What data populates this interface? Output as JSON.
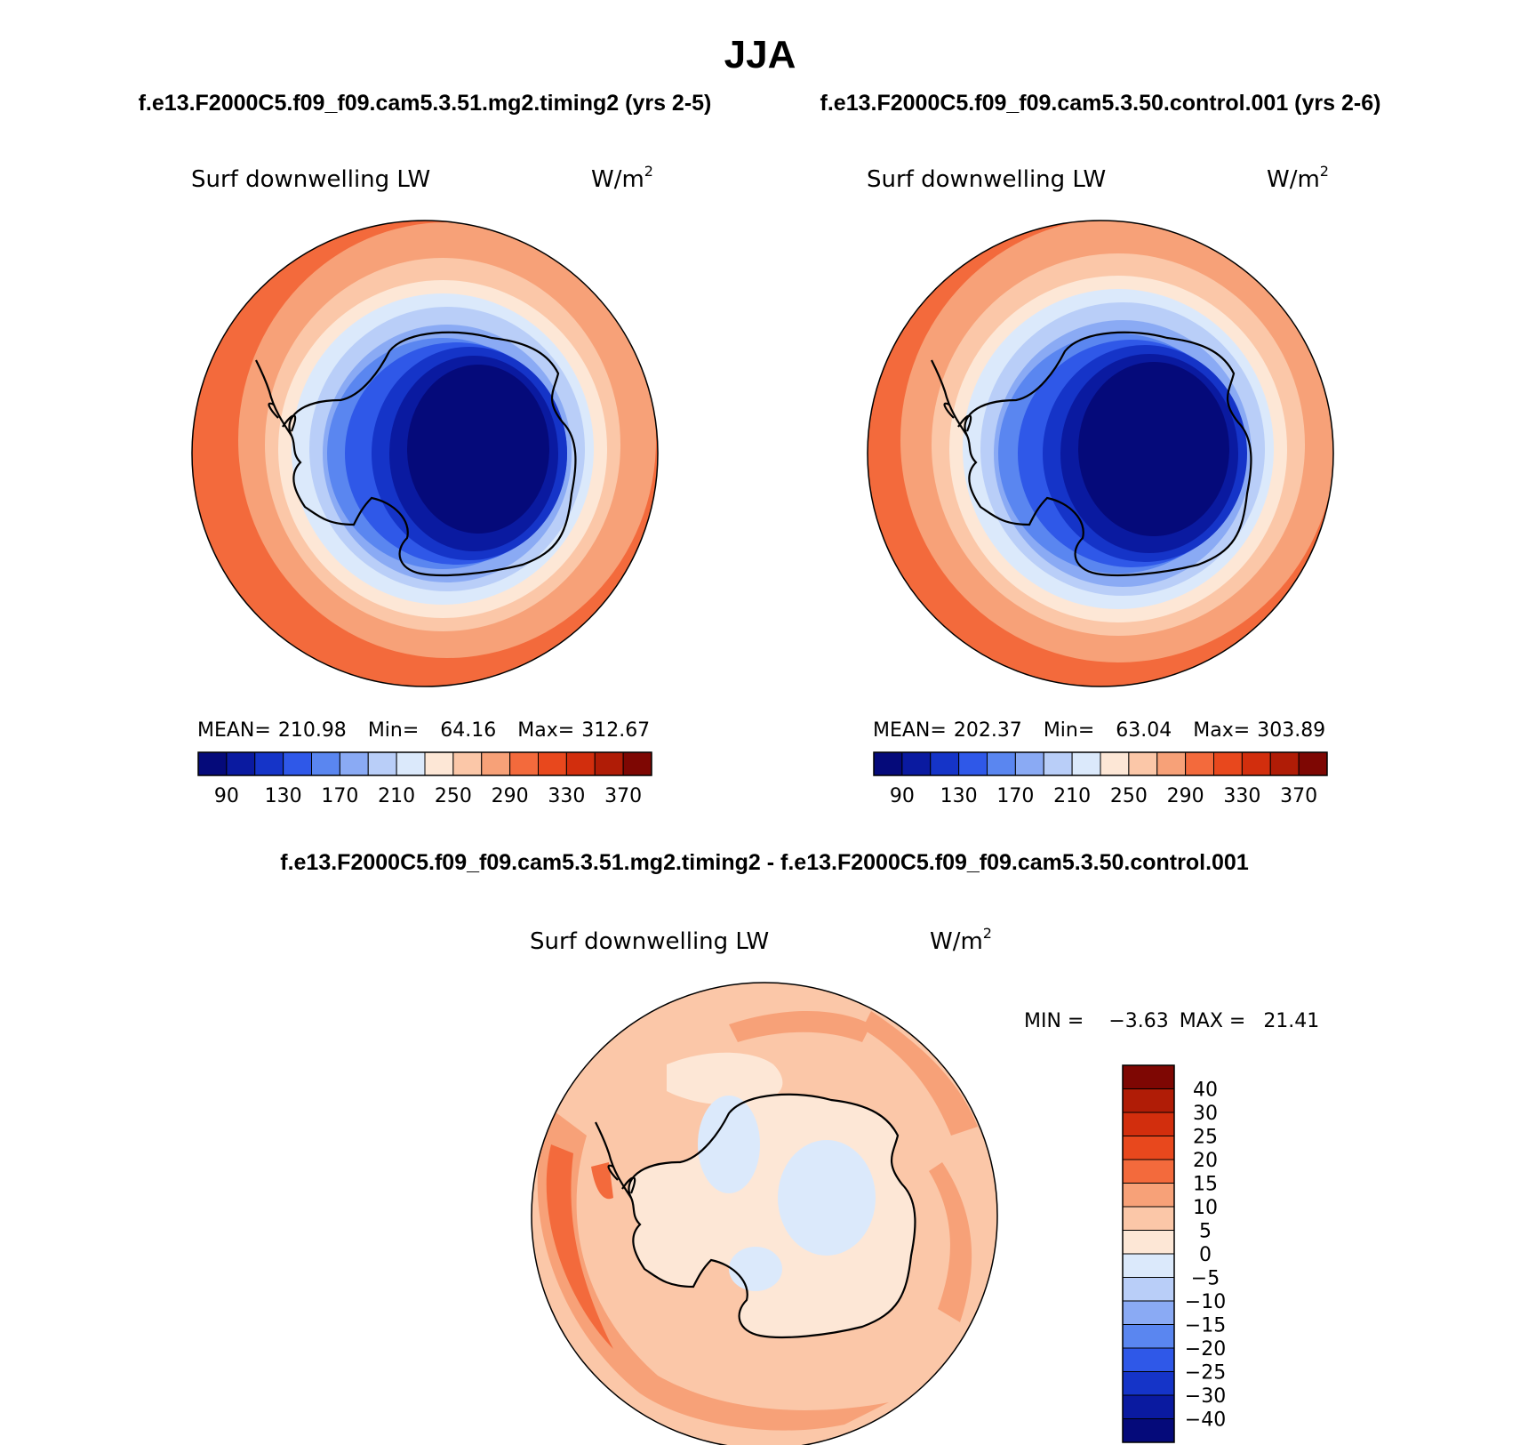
{
  "figure": {
    "title": "JJA",
    "top_header_left": "f.e13.F2000C5.f09_f09.cam5.3.51.mg2.timing2 (yrs 2-5)",
    "top_header_right": "f.e13.F2000C5.f09_f09.cam5.3.50.control.001 (yrs 2-6)",
    "diff_header": "f.e13.F2000C5.f09_f09.cam5.3.51.mg2.timing2 - f.e13.F2000C5.f09_f09.cam5.3.50.control.001"
  },
  "colors": {
    "abs_scale": [
      "#050a7a",
      "#0a1aa0",
      "#1534c8",
      "#2f58e8",
      "#5a86f0",
      "#8aaaf4",
      "#b9cef8",
      "#dbe9fb",
      "#fde7d6",
      "#fbc7a8",
      "#f7a178",
      "#f36a3c",
      "#e8481d",
      "#d22e0d",
      "#b01c06",
      "#7e0703"
    ],
    "diff_scale": [
      "#050a7a",
      "#0a1aa0",
      "#1534c8",
      "#2f58e8",
      "#5a86f0",
      "#8aaaf4",
      "#b9cef8",
      "#dbe9fb",
      "#fde7d6",
      "#fbc7a8",
      "#f7a178",
      "#f36a3c",
      "#e8481d",
      "#d22e0d",
      "#b01c06",
      "#7e0703"
    ],
    "coastline": "#000000"
  },
  "chart_data": [
    {
      "type": "heatmap",
      "id": "panel-left",
      "title": "Surf downwelling LW",
      "units_base": "W/m",
      "units_sup": "2",
      "projection": "south polar stereographic",
      "stats": {
        "mean_label": "MEAN=",
        "mean": "210.98",
        "min_label": "Min=",
        "min": "64.16",
        "max_label": "Max=",
        "max": "312.67"
      },
      "colorbar_ticks": [
        "90",
        "130",
        "170",
        "210",
        "250",
        "290",
        "330",
        "370"
      ],
      "contour_levels": [
        70,
        90,
        110,
        130,
        150,
        170,
        190,
        210,
        230,
        250,
        270,
        290,
        310,
        330,
        350,
        370
      ]
    },
    {
      "type": "heatmap",
      "id": "panel-right",
      "title": "Surf downwelling LW",
      "units_base": "W/m",
      "units_sup": "2",
      "projection": "south polar stereographic",
      "stats": {
        "mean_label": "MEAN=",
        "mean": "202.37",
        "min_label": "Min=",
        "min": "63.04",
        "max_label": "Max=",
        "max": "303.89"
      },
      "colorbar_ticks": [
        "90",
        "130",
        "170",
        "210",
        "250",
        "290",
        "330",
        "370"
      ],
      "contour_levels": [
        70,
        90,
        110,
        130,
        150,
        170,
        190,
        210,
        230,
        250,
        270,
        290,
        310,
        330,
        350,
        370
      ]
    },
    {
      "type": "heatmap",
      "id": "panel-diff",
      "title": "Surf downwelling LW",
      "units_base": "W/m",
      "units_sup": "2",
      "projection": "south polar stereographic",
      "stats": {
        "min_label": "MIN =",
        "min": "−3.63",
        "max_label": "MAX =",
        "max": "21.41"
      },
      "colorbar_ticks": [
        "40",
        "30",
        "25",
        "20",
        "15",
        "10",
        "5",
        "0",
        "−5",
        "−10",
        "−15",
        "−20",
        "−25",
        "−30",
        "−40"
      ],
      "contour_levels": [
        -40,
        -30,
        -25,
        -20,
        -15,
        -10,
        -5,
        0,
        5,
        10,
        15,
        20,
        25,
        30,
        40
      ]
    }
  ]
}
